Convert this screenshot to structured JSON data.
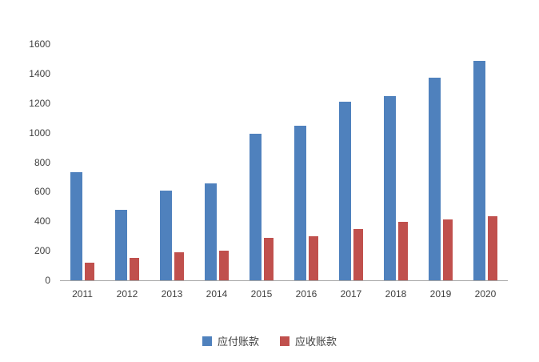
{
  "chart_data": {
    "type": "bar",
    "title": "",
    "xlabel": "",
    "ylabel": "",
    "categories": [
      "2011",
      "2012",
      "2013",
      "2014",
      "2015",
      "2016",
      "2017",
      "2018",
      "2019",
      "2020"
    ],
    "series": [
      {
        "name": "应付账款",
        "color": "#4f81bd",
        "values": [
          730,
          475,
          605,
          655,
          990,
          1045,
          1210,
          1250,
          1370,
          1485
        ]
      },
      {
        "name": "应收账款",
        "color": "#c0504d",
        "values": [
          120,
          150,
          190,
          200,
          290,
          300,
          345,
          395,
          410,
          435
        ]
      }
    ],
    "ylim": [
      0,
      1600
    ],
    "ytick_step": 200,
    "yticks": [
      0,
      200,
      400,
      600,
      800,
      1000,
      1200,
      1400,
      1600
    ],
    "grid": false,
    "legend_position": "bottom"
  },
  "colors": {
    "axis_line": "#a6a6a6",
    "text": "#404040",
    "background": "#ffffff"
  }
}
